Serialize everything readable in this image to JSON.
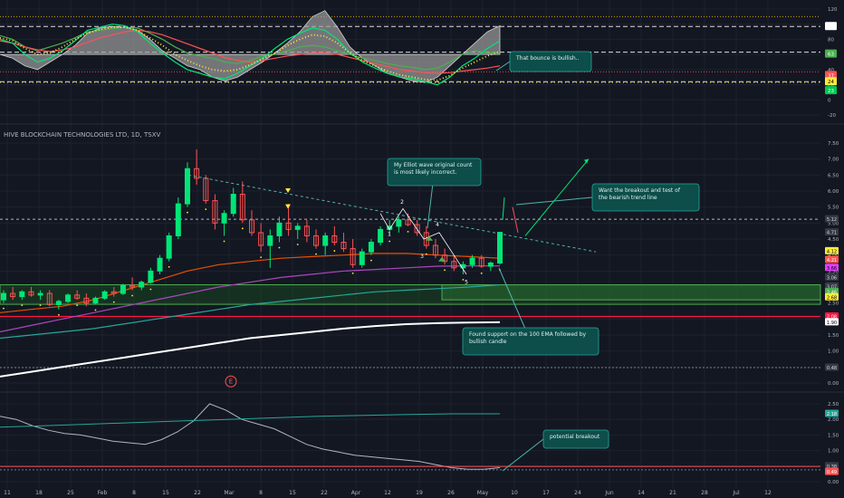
{
  "header": {
    "title": "HIVE BLOCKCHAIN TECHNOLOGIES LTD, 1D, TSXV"
  },
  "chart_data": [
    {
      "type": "line",
      "name": "oscillator-panel",
      "ylim": [
        -20,
        120
      ],
      "y_ticks": [
        "120",
        "100",
        "80",
        "60",
        "40",
        "20",
        "0",
        "-20"
      ],
      "levels": [
        97,
        63,
        37,
        24,
        23
      ],
      "level_labels": [
        {
          "text": "97",
          "color": "#ffffff",
          "bg": "#ffffff"
        },
        {
          "text": "63",
          "color": "#ffffff",
          "bg": "#4caf50"
        },
        {
          "text": "37",
          "color": "#ffffff",
          "bg": "#ff5252"
        },
        {
          "text": "24",
          "color": "#000000",
          "bg": "#ffeb3b"
        },
        {
          "text": "23",
          "color": "#ffffff",
          "bg": "#00c853"
        }
      ],
      "annotation": "That bounce is bullish..",
      "series": [
        {
          "color": "#9e9e9e",
          "fill": true,
          "values": [
            60,
            55,
            45,
            40,
            50,
            60,
            72,
            88,
            95,
            97,
            96,
            92,
            80,
            65,
            55,
            45,
            40,
            30,
            25,
            30,
            40,
            50,
            62,
            75,
            90,
            110,
            118,
            96,
            70,
            55,
            45,
            35,
            30,
            25,
            23,
            30,
            45,
            60,
            75,
            90,
            98
          ]
        },
        {
          "color": "#4caf50",
          "values": [
            85,
            80,
            70,
            65,
            70,
            75,
            82,
            90,
            92,
            94,
            96,
            95,
            88,
            80,
            70,
            62,
            58,
            55,
            50,
            48,
            52,
            58,
            60,
            65,
            70,
            72,
            70,
            65,
            60,
            55,
            52,
            48,
            45,
            43,
            40,
            42,
            50,
            60,
            65,
            62,
            63
          ]
        },
        {
          "color": "#ff5252",
          "values": [
            78,
            75,
            70,
            66,
            64,
            66,
            70,
            76,
            82,
            86,
            90,
            92,
            90,
            86,
            80,
            74,
            68,
            62,
            56,
            52,
            50,
            52,
            55,
            58,
            60,
            62,
            62,
            60,
            56,
            52,
            48,
            44,
            40,
            38,
            36,
            35,
            36,
            38,
            40,
            42,
            45
          ]
        },
        {
          "color": "#00e676",
          "values": [
            80,
            75,
            60,
            50,
            55,
            65,
            78,
            92,
            96,
            100,
            98,
            90,
            75,
            62,
            50,
            40,
            35,
            30,
            28,
            35,
            45,
            55,
            68,
            80,
            88,
            95,
            92,
            80,
            62,
            50,
            42,
            35,
            30,
            28,
            24,
            20,
            30,
            45,
            55,
            68,
            78
          ]
        },
        {
          "color": "#ffeb3b",
          "dotted": true,
          "values": [
            82,
            78,
            68,
            60,
            62,
            70,
            80,
            88,
            93,
            96,
            96,
            92,
            82,
            72,
            60,
            52,
            45,
            40,
            38,
            40,
            46,
            54,
            62,
            72,
            80,
            86,
            84,
            75,
            62,
            52,
            45,
            38,
            33,
            30,
            27,
            26,
            32,
            42,
            50,
            58,
            64
          ]
        }
      ]
    },
    {
      "type": "candlestick",
      "name": "price-panel",
      "title": "HIVE BLOCKCHAIN TECHNOLOGIES LTD, 1D, TSXV",
      "ylim": [
        0,
        7.5
      ],
      "y_ticks": [
        "7.50",
        "7.00",
        "6.50",
        "6.00",
        "5.50",
        "5.00",
        "4.50",
        "4.00",
        "3.50",
        "3.00",
        "2.50",
        "2.00",
        "1.50",
        "1.00",
        "0.50",
        "0.00"
      ],
      "price_labels": [
        {
          "text": "5.12",
          "bg": "#363a45",
          "color": "#d1d4dc"
        },
        {
          "text": "4.71",
          "bg": "#363a45",
          "color": "#d1d4dc"
        },
        {
          "text": "4.12",
          "bg": "#ffeb3b",
          "color": "#000000"
        },
        {
          "text": "4.21",
          "bg": "#ff5252",
          "color": "#ffffff"
        },
        {
          "text": "3.66",
          "bg": "#e040fb",
          "color": "#000000"
        },
        {
          "text": "3.06",
          "bg": "#363a45",
          "color": "#d1d4dc"
        },
        {
          "text": "3.07",
          "bg": "#363a45",
          "color": "#d1d4dc"
        },
        {
          "text": "2.46",
          "bg": "#4caf50",
          "color": "#ffffff"
        },
        {
          "text": "2.68",
          "bg": "#ffeb3b",
          "color": "#000000"
        },
        {
          "text": "2.08",
          "bg": "#ff1744",
          "color": "#ffffff"
        },
        {
          "text": "1.90",
          "bg": "#ffffff",
          "color": "#000000"
        },
        {
          "text": "0.48",
          "bg": "#363a45",
          "color": "#d1d4dc"
        }
      ],
      "annotations": [
        "My Elliot wave original count is most likely incorrect.",
        "Want the breakout and test of the bearish trend line",
        "Found support on the 100 EMA followed by bullish candle"
      ],
      "wave_labels": [
        "1",
        "2",
        "3",
        "4",
        "5"
      ],
      "earnings_marker": "E",
      "candles": [
        [
          2.6,
          2.9,
          2.5,
          2.8
        ],
        [
          2.8,
          3.0,
          2.6,
          2.7
        ],
        [
          2.7,
          2.9,
          2.6,
          2.85
        ],
        [
          2.85,
          3.0,
          2.7,
          2.75
        ],
        [
          2.75,
          2.9,
          2.6,
          2.8
        ],
        [
          2.8,
          2.9,
          2.4,
          2.45
        ],
        [
          2.45,
          2.6,
          2.3,
          2.55
        ],
        [
          2.55,
          2.8,
          2.5,
          2.75
        ],
        [
          2.75,
          2.9,
          2.6,
          2.65
        ],
        [
          2.65,
          2.8,
          2.4,
          2.5
        ],
        [
          2.5,
          2.7,
          2.45,
          2.65
        ],
        [
          2.65,
          2.9,
          2.6,
          2.85
        ],
        [
          2.85,
          3.0,
          2.7,
          2.8
        ],
        [
          2.8,
          3.1,
          2.75,
          3.05
        ],
        [
          3.05,
          3.3,
          2.9,
          3.0
        ],
        [
          3.0,
          3.2,
          2.9,
          3.15
        ],
        [
          3.15,
          3.6,
          3.1,
          3.5
        ],
        [
          3.5,
          4.0,
          3.4,
          3.9
        ],
        [
          3.9,
          4.7,
          3.8,
          4.6
        ],
        [
          4.6,
          5.8,
          4.5,
          5.6
        ],
        [
          5.6,
          6.9,
          5.5,
          6.7
        ],
        [
          6.7,
          7.3,
          6.2,
          6.4
        ],
        [
          6.4,
          6.5,
          5.6,
          5.7
        ],
        [
          5.7,
          5.9,
          4.8,
          5.0
        ],
        [
          5.0,
          5.4,
          4.6,
          5.3
        ],
        [
          5.3,
          6.1,
          5.2,
          5.9
        ],
        [
          5.9,
          6.3,
          5.0,
          5.1
        ],
        [
          5.1,
          5.4,
          4.6,
          4.7
        ],
        [
          4.7,
          5.0,
          4.1,
          4.3
        ],
        [
          4.3,
          4.8,
          3.6,
          4.6
        ],
        [
          4.6,
          5.2,
          4.4,
          5.0
        ],
        [
          5.0,
          5.6,
          4.6,
          4.8
        ],
        [
          4.8,
          5.0,
          4.5,
          4.9
        ],
        [
          4.9,
          5.1,
          4.4,
          4.6
        ],
        [
          4.6,
          4.8,
          4.2,
          4.3
        ],
        [
          4.3,
          4.7,
          4.0,
          4.6
        ],
        [
          4.6,
          4.9,
          4.3,
          4.4
        ],
        [
          4.4,
          4.7,
          4.1,
          4.2
        ],
        [
          4.2,
          4.5,
          3.6,
          3.7
        ],
        [
          3.7,
          4.2,
          3.6,
          4.1
        ],
        [
          4.1,
          4.5,
          4.0,
          4.4
        ],
        [
          4.4,
          4.9,
          4.3,
          4.8
        ],
        [
          4.8,
          5.1,
          4.6,
          4.9
        ],
        [
          4.9,
          5.2,
          4.7,
          5.1
        ],
        [
          5.1,
          5.3,
          4.9,
          4.95
        ],
        [
          4.95,
          5.1,
          4.6,
          4.7
        ],
        [
          4.7,
          4.9,
          4.2,
          4.3
        ],
        [
          4.3,
          4.5,
          3.9,
          4.0
        ],
        [
          4.0,
          4.2,
          3.7,
          3.8
        ],
        [
          3.8,
          4.0,
          3.5,
          3.6
        ],
        [
          3.6,
          3.8,
          3.4,
          3.7
        ],
        [
          3.7,
          4.0,
          3.6,
          3.9
        ],
        [
          3.9,
          4.0,
          3.6,
          3.65
        ],
        [
          3.65,
          3.8,
          3.5,
          3.75
        ],
        [
          3.75,
          4.7,
          3.7,
          4.71
        ]
      ],
      "ema_series": [
        {
          "color": "#e65100",
          "values": [
            2.2,
            2.3,
            2.4,
            2.6,
            2.9,
            3.2,
            3.5,
            3.7,
            3.8,
            3.9,
            3.95,
            4.0,
            4.05,
            4.05,
            4.0,
            3.95,
            3.9
          ]
        },
        {
          "color": "#ab47bc",
          "values": [
            1.6,
            1.8,
            2.0,
            2.2,
            2.4,
            2.6,
            2.8,
            3.0,
            3.15,
            3.3,
            3.4,
            3.5,
            3.55,
            3.6,
            3.65,
            3.66,
            3.66
          ]
        },
        {
          "color": "#26a69a",
          "values": [
            1.4,
            1.5,
            1.6,
            1.7,
            1.85,
            2.0,
            2.15,
            2.3,
            2.45,
            2.55,
            2.65,
            2.75,
            2.85,
            2.9,
            2.95,
            3.0,
            3.07
          ]
        },
        {
          "color": "#ffffff",
          "values": [
            0.2,
            0.35,
            0.5,
            0.65,
            0.8,
            0.95,
            1.1,
            1.25,
            1.4,
            1.5,
            1.6,
            1.7,
            1.78,
            1.84,
            1.87,
            1.89,
            1.9
          ]
        }
      ]
    },
    {
      "type": "line",
      "name": "volatility-panel",
      "ylim": [
        0,
        2.5
      ],
      "y_ticks": [
        "2.50",
        "2.00",
        "1.50",
        "1.00",
        "0.50",
        "0.00"
      ],
      "level_labels": [
        {
          "text": "2.18",
          "bg": "#26a69a",
          "color": "#ffffff"
        },
        {
          "text": "0.38",
          "bg": "#363a45",
          "color": "#d1d4dc"
        },
        {
          "text": "0.49",
          "bg": "#ff5252",
          "color": "#ffffff"
        }
      ],
      "annotation": "potential breakout",
      "series": [
        {
          "color": "#b2b5be",
          "values": [
            2.1,
            2.0,
            1.8,
            1.65,
            1.55,
            1.5,
            1.4,
            1.3,
            1.25,
            1.2,
            1.35,
            1.6,
            1.95,
            2.5,
            2.3,
            2.0,
            1.85,
            1.7,
            1.45,
            1.2,
            1.05,
            0.95,
            0.85,
            0.8,
            0.75,
            0.7,
            0.65,
            0.55,
            0.45,
            0.4,
            0.4,
            0.45
          ]
        },
        {
          "color": "#26a69a",
          "values": [
            1.75,
            1.8,
            1.85,
            1.9,
            1.95,
            2.0,
            2.05,
            2.1,
            2.13,
            2.16,
            2.18,
            2.18
          ]
        }
      ]
    }
  ],
  "x_axis": {
    "ticks": [
      "11",
      "18",
      "25",
      "Feb",
      "8",
      "15",
      "22",
      "Mar",
      "8",
      "15",
      "22",
      "Apr",
      "12",
      "19",
      "26",
      "May",
      "10",
      "17",
      "24",
      "Jun",
      "14",
      "21",
      "28",
      "Jul",
      "12"
    ]
  }
}
